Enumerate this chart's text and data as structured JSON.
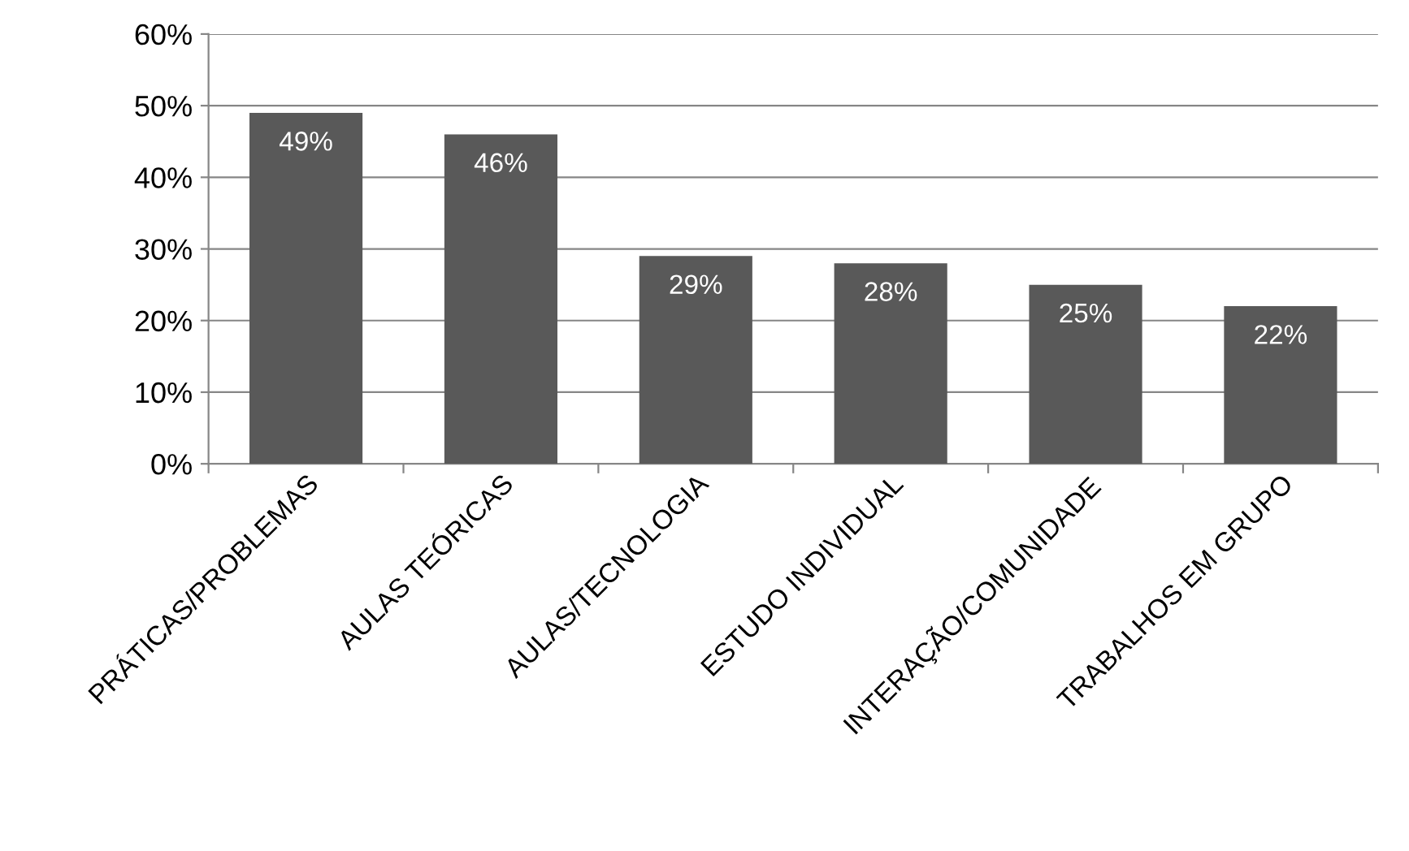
{
  "chart_data": {
    "type": "bar",
    "categories": [
      "PRÁTICAS/PROBLEMAS",
      "AULAS TEÓRICAS",
      "AULAS/TECNOLOGIA",
      "ESTUDO INDIVIDUAL",
      "INTERAÇÃO/COMUNIDADE",
      "TRABALHOS EM GRUPO"
    ],
    "values": [
      49,
      46,
      29,
      28,
      25,
      22
    ],
    "value_labels": [
      "49%",
      "46%",
      "29%",
      "28%",
      "25%",
      "22%"
    ],
    "color": "#595959",
    "ylim": [
      0,
      60
    ],
    "yticks": [
      {
        "value": 0,
        "label": "0%"
      },
      {
        "value": 10,
        "label": "10%"
      },
      {
        "value": 20,
        "label": "20%"
      },
      {
        "value": 30,
        "label": "30%"
      },
      {
        "value": 40,
        "label": "40%"
      },
      {
        "value": 50,
        "label": "50%"
      },
      {
        "value": 60,
        "label": "60%"
      }
    ],
    "grid": "y",
    "legend": false
  }
}
